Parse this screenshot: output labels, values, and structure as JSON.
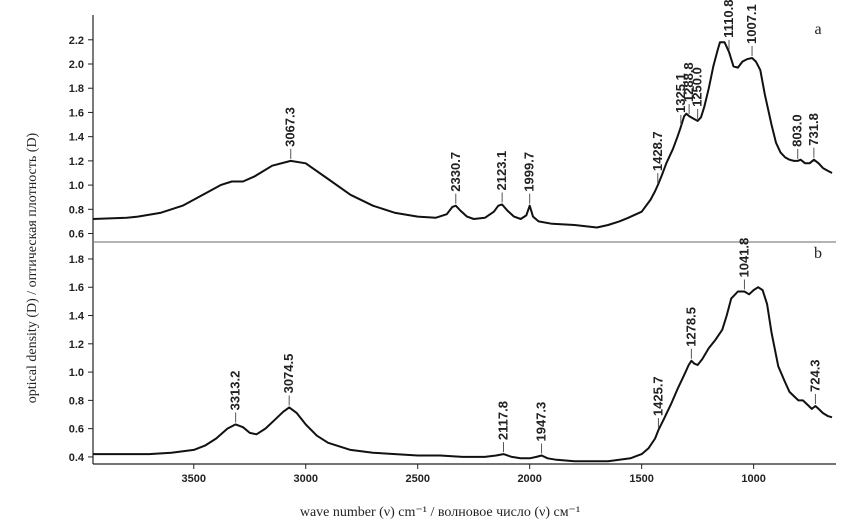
{
  "chart_data": {
    "type": "line",
    "xlabel": "wave number (ν) cm⁻¹ / волновое число (ν) см⁻¹",
    "ylabel": "optical density (D) / оптическая плотность (D)",
    "x_ticks": [
      3500,
      3000,
      2500,
      2000,
      1500,
      1000
    ],
    "xlim": [
      3950,
      650
    ],
    "panels": [
      {
        "letter": "a",
        "ylim": [
          0.53,
          2.38
        ],
        "y_ticks": [
          "0.6",
          "0.8",
          "1.0",
          "1.2",
          "1.4",
          "1.6",
          "1.8",
          "2.0",
          "2.2"
        ],
        "x": [
          3950,
          3800,
          3750,
          3650,
          3550,
          3450,
          3380,
          3330,
          3280,
          3230,
          3150,
          3067,
          3000,
          2900,
          2800,
          2700,
          2600,
          2500,
          2420,
          2370,
          2345,
          2330,
          2310,
          2280,
          2250,
          2200,
          2160,
          2140,
          2123,
          2100,
          2070,
          2040,
          2015,
          2000,
          1985,
          1960,
          1900,
          1800,
          1750,
          1700,
          1650,
          1600,
          1560,
          1500,
          1460,
          1440,
          1428,
          1410,
          1390,
          1360,
          1340,
          1325,
          1310,
          1300,
          1288,
          1270,
          1250,
          1235,
          1220,
          1200,
          1180,
          1160,
          1150,
          1130,
          1110,
          1090,
          1070,
          1050,
          1030,
          1007,
          990,
          970,
          950,
          920,
          900,
          880,
          860,
          840,
          820,
          803,
          790,
          770,
          750,
          731,
          710,
          690,
          670,
          650
        ],
        "y": [
          0.72,
          0.73,
          0.74,
          0.77,
          0.83,
          0.93,
          1.0,
          1.03,
          1.03,
          1.07,
          1.16,
          1.2,
          1.18,
          1.05,
          0.92,
          0.83,
          0.77,
          0.74,
          0.73,
          0.76,
          0.82,
          0.83,
          0.79,
          0.74,
          0.72,
          0.73,
          0.78,
          0.83,
          0.84,
          0.79,
          0.74,
          0.72,
          0.75,
          0.83,
          0.74,
          0.7,
          0.68,
          0.67,
          0.66,
          0.65,
          0.67,
          0.7,
          0.73,
          0.78,
          0.88,
          0.95,
          1.0,
          1.08,
          1.18,
          1.3,
          1.4,
          1.48,
          1.57,
          1.59,
          1.57,
          1.55,
          1.53,
          1.56,
          1.65,
          1.8,
          1.98,
          2.12,
          2.18,
          2.18,
          2.1,
          1.98,
          1.97,
          2.02,
          2.04,
          2.05,
          2.02,
          1.95,
          1.75,
          1.5,
          1.35,
          1.27,
          1.23,
          1.21,
          1.2,
          1.2,
          1.21,
          1.18,
          1.18,
          1.21,
          1.18,
          1.14,
          1.12,
          1.1
        ],
        "peaks": [
          {
            "label": "3067.3",
            "x": 3067
          },
          {
            "label": "2330.7",
            "x": 2330
          },
          {
            "label": "2123.1",
            "x": 2123
          },
          {
            "label": "1999.7",
            "x": 2000
          },
          {
            "label": "1428.7",
            "x": 1428
          },
          {
            "label": "1325.1",
            "x": 1325
          },
          {
            "label": "1288.8",
            "x": 1288
          },
          {
            "label": "1250.0",
            "x": 1250
          },
          {
            "label": "1110.8",
            "x": 1110
          },
          {
            "label": "1007.1",
            "x": 1007
          },
          {
            "label": "803.0",
            "x": 803
          },
          {
            "label": "731.8",
            "x": 731
          }
        ]
      },
      {
        "letter": "b",
        "ylim": [
          0.35,
          1.92
        ],
        "y_ticks": [
          "0.4",
          "0.6",
          "0.8",
          "1.0",
          "1.2",
          "1.4",
          "1.6",
          "1.8"
        ],
        "x": [
          3950,
          3800,
          3700,
          3600,
          3500,
          3450,
          3400,
          3350,
          3313,
          3280,
          3250,
          3220,
          3180,
          3140,
          3100,
          3074,
          3040,
          3000,
          2950,
          2900,
          2800,
          2700,
          2600,
          2500,
          2400,
          2300,
          2200,
          2150,
          2117,
          2080,
          2040,
          2000,
          1970,
          1947,
          1920,
          1880,
          1800,
          1750,
          1700,
          1650,
          1600,
          1550,
          1500,
          1470,
          1440,
          1425,
          1400,
          1370,
          1340,
          1310,
          1290,
          1278,
          1265,
          1250,
          1230,
          1200,
          1170,
          1140,
          1120,
          1100,
          1070,
          1041,
          1020,
          1000,
          980,
          960,
          940,
          920,
          890,
          860,
          840,
          820,
          800,
          780,
          760,
          740,
          724,
          710,
          690,
          670,
          650
        ],
        "y": [
          0.42,
          0.42,
          0.42,
          0.43,
          0.45,
          0.48,
          0.53,
          0.6,
          0.63,
          0.61,
          0.57,
          0.56,
          0.6,
          0.66,
          0.72,
          0.75,
          0.71,
          0.63,
          0.55,
          0.5,
          0.45,
          0.43,
          0.42,
          0.41,
          0.41,
          0.4,
          0.4,
          0.41,
          0.42,
          0.4,
          0.39,
          0.39,
          0.4,
          0.41,
          0.39,
          0.38,
          0.37,
          0.37,
          0.37,
          0.37,
          0.38,
          0.39,
          0.42,
          0.46,
          0.53,
          0.59,
          0.67,
          0.77,
          0.88,
          0.98,
          1.05,
          1.08,
          1.06,
          1.05,
          1.09,
          1.17,
          1.23,
          1.3,
          1.4,
          1.52,
          1.57,
          1.57,
          1.55,
          1.58,
          1.6,
          1.58,
          1.48,
          1.28,
          1.04,
          0.93,
          0.86,
          0.83,
          0.8,
          0.8,
          0.77,
          0.74,
          0.76,
          0.74,
          0.71,
          0.69,
          0.68
        ],
        "peaks": [
          {
            "label": "3313.2",
            "x": 3313
          },
          {
            "label": "3074.5",
            "x": 3074
          },
          {
            "label": "2117.8",
            "x": 2117
          },
          {
            "label": "1947.3",
            "x": 1947
          },
          {
            "label": "1425.7",
            "x": 1425
          },
          {
            "label": "1278.5",
            "x": 1278
          },
          {
            "label": "1041.8",
            "x": 1041
          },
          {
            "label": "724.3",
            "x": 724
          }
        ]
      }
    ]
  }
}
